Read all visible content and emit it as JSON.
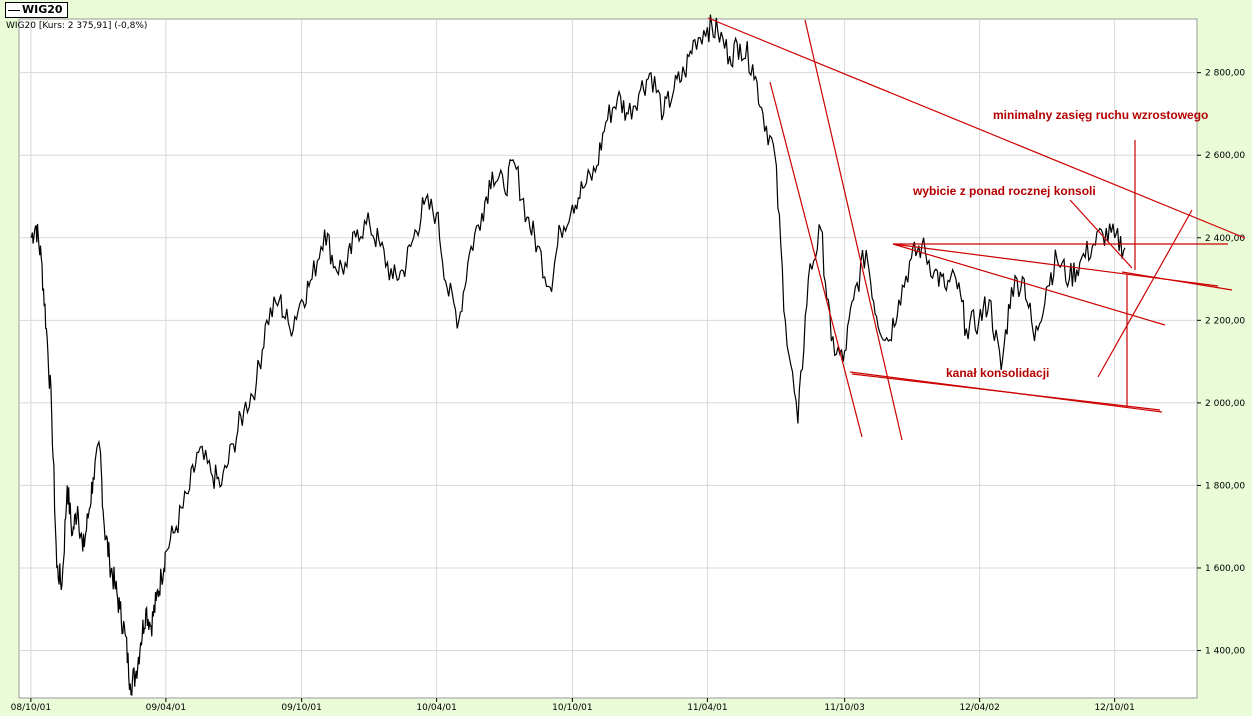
{
  "legend": {
    "series_label": "WIG20"
  },
  "info_line": "WIG20 [Kurs: 2 375,91] (-0,8%)",
  "colors": {
    "background": "#eafbd8",
    "plot": "#ffffff",
    "grid": "#d8d8d8",
    "price": "#000000",
    "annotation": "#cc0000",
    "annotation_text": "#b40000"
  },
  "chart_data": {
    "type": "line",
    "title": "",
    "xlabel": "",
    "ylabel": "",
    "x_ticks": [
      "08/10/01",
      "09/04/01",
      "09/10/01",
      "10/04/01",
      "10/10/01",
      "11/04/01",
      "11/10/03",
      "12/04/02",
      "12/10/01"
    ],
    "y_ticks": [
      "1 400,00",
      "1 600,00",
      "1 800,00",
      "2 000,00",
      "2 200,00",
      "2 400,00",
      "2 600,00",
      "2 800,00"
    ],
    "y_tick_values": [
      1400,
      1600,
      1800,
      2000,
      2200,
      2400,
      2600,
      2800
    ],
    "ylim": [
      1285,
      2930
    ],
    "xlim": [
      "2008-09-15",
      "2013-01-20"
    ],
    "grid": true,
    "legend_position": "top-left",
    "series": [
      {
        "name": "WIG20",
        "x": [
          "2008-10-01",
          "2008-10-08",
          "2008-10-15",
          "2008-10-22",
          "2008-10-29",
          "2008-11-05",
          "2008-11-12",
          "2008-11-19",
          "2008-11-26",
          "2008-12-03",
          "2008-12-10",
          "2008-12-17",
          "2008-12-24",
          "2009-01-02",
          "2009-01-08",
          "2009-01-15",
          "2009-01-22",
          "2009-01-29",
          "2009-02-05",
          "2009-02-12",
          "2009-02-19",
          "2009-02-26",
          "2009-03-05",
          "2009-03-12",
          "2009-03-19",
          "2009-03-26",
          "2009-04-01",
          "2009-04-15",
          "2009-05-01",
          "2009-05-15",
          "2009-06-01",
          "2009-06-15",
          "2009-07-01",
          "2009-07-15",
          "2009-08-01",
          "2009-08-15",
          "2009-09-01",
          "2009-09-15",
          "2009-10-01",
          "2009-10-15",
          "2009-11-01",
          "2009-11-15",
          "2009-12-01",
          "2009-12-15",
          "2010-01-01",
          "2010-01-15",
          "2010-02-01",
          "2010-02-15",
          "2010-03-01",
          "2010-03-15",
          "2010-04-01",
          "2010-04-15",
          "2010-05-01",
          "2010-05-15",
          "2010-06-01",
          "2010-06-15",
          "2010-07-01",
          "2010-07-15",
          "2010-08-01",
          "2010-08-15",
          "2010-09-01",
          "2010-09-15",
          "2010-10-01",
          "2010-10-15",
          "2010-11-01",
          "2010-11-15",
          "2010-12-01",
          "2010-12-15",
          "2011-01-01",
          "2011-01-15",
          "2011-02-01",
          "2011-02-15",
          "2011-03-01",
          "2011-03-15",
          "2011-04-01",
          "2011-04-15",
          "2011-05-01",
          "2011-05-15",
          "2011-06-01",
          "2011-06-15",
          "2011-07-01",
          "2011-07-15",
          "2011-08-01",
          "2011-08-15",
          "2011-09-01",
          "2011-09-15",
          "2011-10-01",
          "2011-10-15",
          "2011-11-01",
          "2011-11-15",
          "2011-12-01",
          "2011-12-15",
          "2012-01-01",
          "2012-01-15",
          "2012-02-01",
          "2012-02-15",
          "2012-03-01",
          "2012-03-15",
          "2012-04-01",
          "2012-04-15",
          "2012-05-01",
          "2012-05-15",
          "2012-06-01",
          "2012-06-15",
          "2012-07-01",
          "2012-07-15",
          "2012-08-01",
          "2012-08-15",
          "2012-09-01",
          "2012-09-15",
          "2012-10-01",
          "2012-10-15"
        ],
        "values": [
          2400,
          2430,
          2350,
          2180,
          1980,
          1600,
          1560,
          1800,
          1680,
          1750,
          1640,
          1720,
          1820,
          1890,
          1700,
          1620,
          1560,
          1500,
          1440,
          1320,
          1340,
          1420,
          1500,
          1460,
          1520,
          1580,
          1640,
          1700,
          1780,
          1880,
          1830,
          1800,
          1900,
          1980,
          2050,
          2200,
          2250,
          2180,
          2250,
          2300,
          2420,
          2330,
          2330,
          2420,
          2430,
          2380,
          2300,
          2320,
          2400,
          2480,
          2460,
          2280,
          2200,
          2360,
          2460,
          2560,
          2520,
          2580,
          2450,
          2380,
          2280,
          2420,
          2480,
          2520,
          2560,
          2680,
          2740,
          2700,
          2760,
          2800,
          2700,
          2760,
          2800,
          2880,
          2910,
          2900,
          2840,
          2870,
          2820,
          2700,
          2600,
          2200,
          1950,
          2300,
          2420,
          2150,
          2100,
          2250,
          2370,
          2210,
          2150,
          2250,
          2350,
          2380,
          2320,
          2280,
          2300,
          2180,
          2200,
          2250,
          2080,
          2280,
          2300,
          2150,
          2280,
          2350,
          2300,
          2340,
          2380,
          2410,
          2400,
          2376
        ]
      }
    ],
    "annotations": [
      {
        "text": "minimalny zasięg ruchu wzrostowego"
      },
      {
        "text": "wybicie z ponad rocznej konsoli"
      },
      {
        "text": "kanał konsolidacji"
      }
    ]
  }
}
